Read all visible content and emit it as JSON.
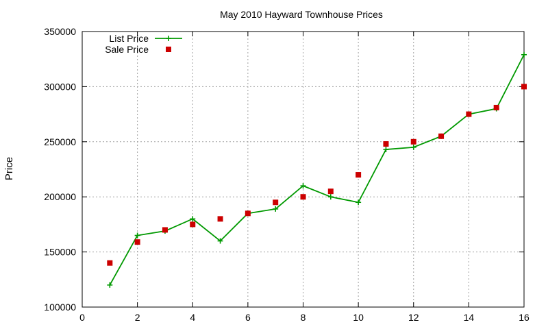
{
  "chart_data": {
    "type": "line",
    "title": "May 2010 Hayward Townhouse Prices",
    "xlabel": "",
    "ylabel": "Price",
    "xlim": [
      0,
      16
    ],
    "ylim": [
      100000,
      350000
    ],
    "xticks": [
      0,
      2,
      4,
      6,
      8,
      10,
      12,
      14,
      16
    ],
    "yticks": [
      100000,
      150000,
      200000,
      250000,
      300000,
      350000
    ],
    "grid": true,
    "legend_position": "top-left",
    "series": [
      {
        "name": "List Price",
        "style": "line-with-plus-markers",
        "color": "#009900",
        "x": [
          1,
          2,
          3,
          4,
          5,
          6,
          7,
          8,
          9,
          10,
          11,
          12,
          13,
          14,
          15,
          16
        ],
        "y": [
          120000,
          165000,
          169000,
          180000,
          160000,
          185000,
          189000,
          210000,
          200000,
          195000,
          243000,
          245000,
          255000,
          275000,
          280000,
          329000
        ]
      },
      {
        "name": "Sale Price",
        "style": "square-markers",
        "color": "#cc0000",
        "x": [
          1,
          2,
          3,
          4,
          5,
          6,
          7,
          8,
          9,
          10,
          11,
          12,
          13,
          14,
          15,
          16
        ],
        "y": [
          140000,
          159000,
          170000,
          175000,
          180000,
          185000,
          195000,
          200000,
          205000,
          220000,
          248000,
          250000,
          255000,
          275000,
          281000,
          300000
        ]
      }
    ]
  }
}
